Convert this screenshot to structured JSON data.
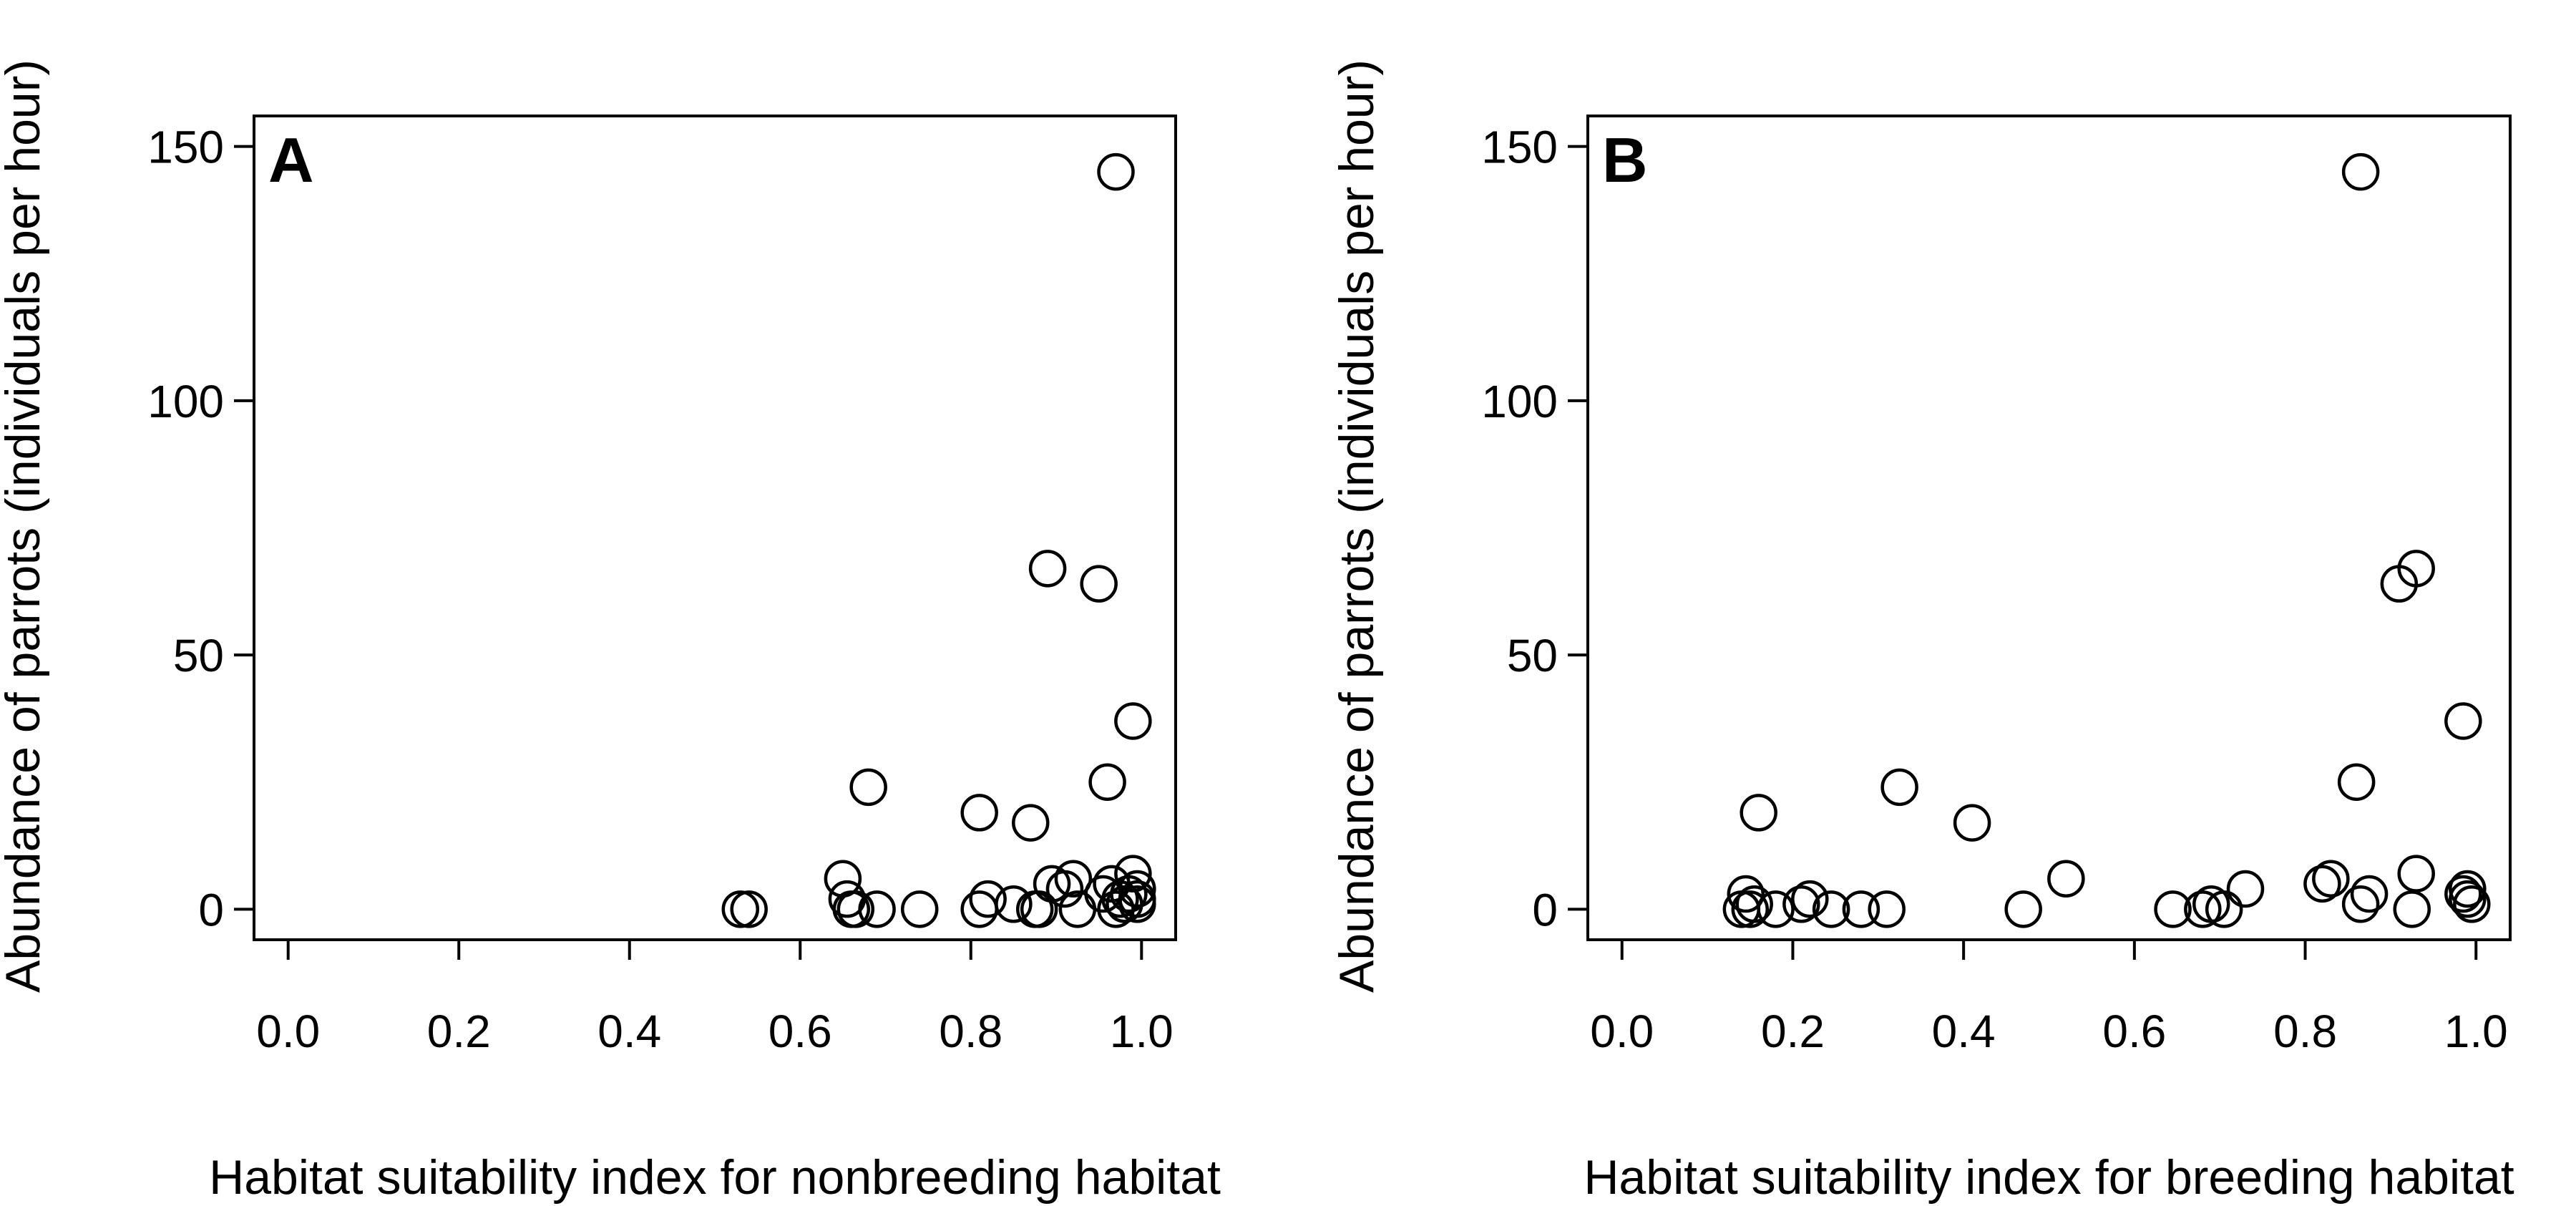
{
  "chart_data": [
    {
      "type": "scatter",
      "panel_label": "A",
      "xlabel": "Habitat suitability index for nonbreeding habitat",
      "ylabel": "Abundance of parrots (individuals per hour)",
      "xlim": [
        -0.04,
        1.04
      ],
      "ylim": [
        -6,
        156
      ],
      "x_ticks": [
        0.0,
        0.2,
        0.4,
        0.6,
        0.8,
        1.0
      ],
      "x_tick_labels": [
        "0.0",
        "0.2",
        "0.4",
        "0.6",
        "0.8",
        "1.0"
      ],
      "y_ticks": [
        0,
        50,
        100,
        150
      ],
      "y_tick_labels": [
        "0",
        "50",
        "100",
        "150"
      ],
      "grid": false,
      "marker": "open-circle",
      "series": [
        {
          "x": [
            0.53,
            0.54,
            0.65,
            0.655,
            0.66,
            0.665,
            0.68,
            0.69,
            0.74,
            0.81,
            0.81,
            0.82,
            0.85,
            0.87,
            0.875,
            0.88,
            0.89,
            0.895,
            0.91,
            0.92,
            0.925,
            0.95,
            0.955,
            0.96,
            0.965,
            0.97,
            0.97,
            0.975,
            0.98,
            0.985,
            0.99,
            0.99,
            0.995,
            0.995,
            0.995
          ],
          "y": [
            0,
            0,
            6,
            2,
            0,
            0,
            24,
            0,
            0,
            19,
            0,
            2,
            1,
            17,
            0,
            0,
            67,
            5,
            4,
            6,
            0,
            64,
            3,
            25,
            5,
            145,
            0,
            2,
            1,
            3,
            37,
            7,
            4,
            1,
            2
          ]
        }
      ]
    },
    {
      "type": "scatter",
      "panel_label": "B",
      "xlabel": "Habitat suitability index for breeding habitat",
      "ylabel": "Abundance of parrots (individuals per hour)",
      "xlim": [
        -0.04,
        1.04
      ],
      "ylim": [
        -6,
        156
      ],
      "x_ticks": [
        0.0,
        0.2,
        0.4,
        0.6,
        0.8,
        1.0
      ],
      "x_tick_labels": [
        "0.0",
        "0.2",
        "0.4",
        "0.6",
        "0.8",
        "1.0"
      ],
      "y_ticks": [
        0,
        50,
        100,
        150
      ],
      "y_tick_labels": [
        "0",
        "50",
        "100",
        "150"
      ],
      "grid": false,
      "marker": "open-circle",
      "series": [
        {
          "x": [
            0.14,
            0.145,
            0.15,
            0.155,
            0.16,
            0.18,
            0.21,
            0.22,
            0.245,
            0.28,
            0.31,
            0.325,
            0.41,
            0.47,
            0.52,
            0.645,
            0.68,
            0.69,
            0.705,
            0.73,
            0.82,
            0.83,
            0.86,
            0.865,
            0.865,
            0.875,
            0.91,
            0.925,
            0.93,
            0.93,
            0.985,
            0.985,
            0.99,
            0.99,
            0.995
          ],
          "y": [
            0,
            3,
            0,
            1,
            19,
            0,
            1,
            2,
            0,
            0,
            0,
            24,
            17,
            0,
            6,
            0,
            0,
            1,
            0,
            4,
            5,
            6,
            25,
            145,
            1,
            3,
            64,
            0,
            67,
            7,
            37,
            3,
            4,
            2,
            1
          ]
        }
      ]
    }
  ]
}
